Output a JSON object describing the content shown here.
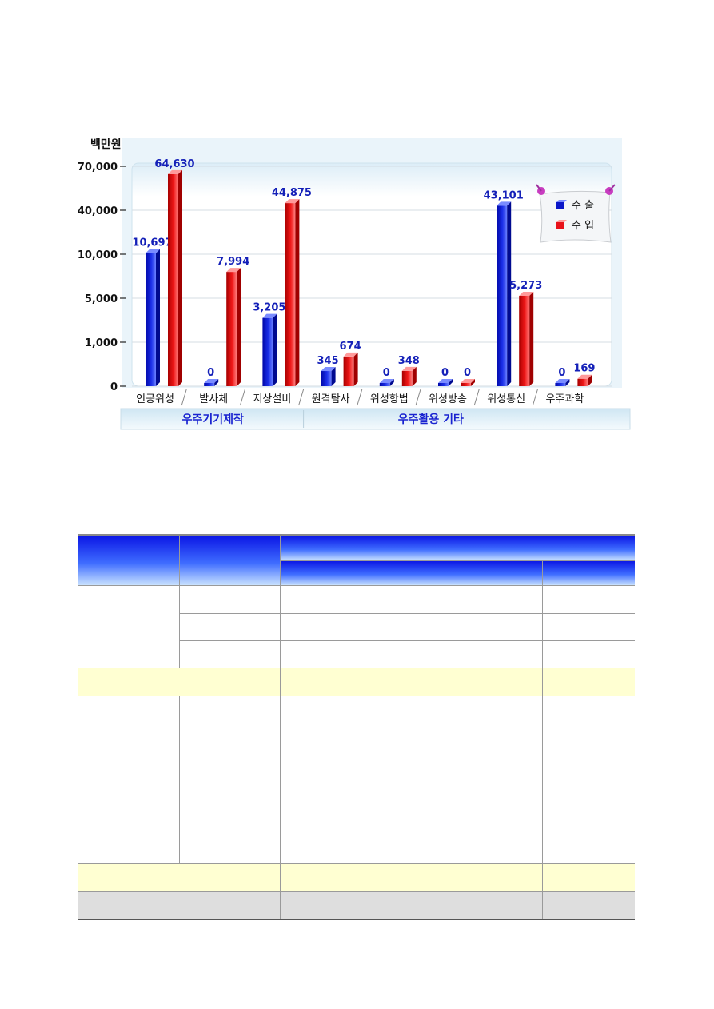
{
  "chart_data": {
    "type": "bar",
    "unit_label": "백만원",
    "y_ticks": [
      "70,000",
      "40,000",
      "10,000",
      "5,000",
      "1,000",
      "0"
    ],
    "y_tick_values": [
      70000,
      40000,
      10000,
      5000,
      1000,
      0
    ],
    "categories": [
      "인공위성",
      "발사체",
      "지상설비",
      "원격탐사",
      "위성항법",
      "위성방송",
      "위성통신",
      "우주과학"
    ],
    "series": [
      {
        "name": "수 출",
        "color": "#0a16c8",
        "values": [
          10697,
          0,
          3205,
          345,
          0,
          0,
          43101,
          0
        ],
        "labels": [
          "10,697",
          "0",
          "3,205",
          "345",
          "0",
          "0",
          "43,101",
          "0"
        ]
      },
      {
        "name": "수 입",
        "color": "#e8121a",
        "values": [
          64630,
          7994,
          44875,
          674,
          348,
          0,
          5273,
          169
        ],
        "labels": [
          "64,630",
          "7,994",
          "44,875",
          "674",
          "348",
          "0",
          "5,273",
          "169"
        ]
      }
    ],
    "groups": [
      {
        "label": "우주기기제작",
        "categories": [
          "인공위성",
          "발사체",
          "지상설비"
        ]
      },
      {
        "label": "우주활용 기타",
        "categories": [
          "원격탐사",
          "위성항법",
          "위성방송",
          "위성통신",
          "우주과학"
        ]
      }
    ],
    "legend_position": "top-right",
    "grid": true
  }
}
